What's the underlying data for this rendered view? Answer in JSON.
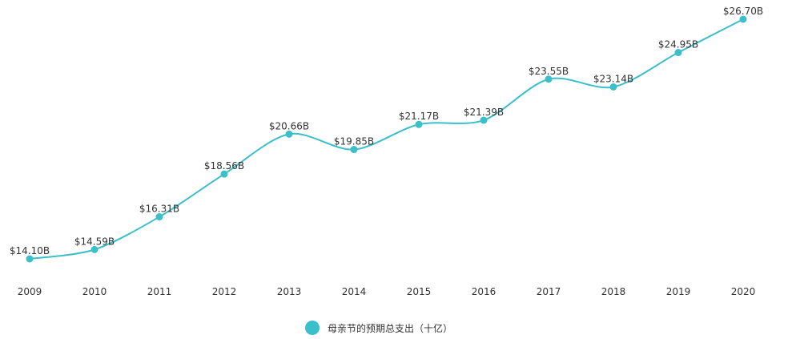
{
  "chart_data": {
    "type": "line",
    "categories": [
      "2009",
      "2010",
      "2011",
      "2012",
      "2013",
      "2014",
      "2015",
      "2016",
      "2017",
      "2018",
      "2019",
      "2020"
    ],
    "series": [
      {
        "name": "母亲节的预期总支出（十亿）",
        "values": [
          14.1,
          14.59,
          16.31,
          18.56,
          20.66,
          19.85,
          21.17,
          21.39,
          23.55,
          23.14,
          24.95,
          26.7
        ],
        "labels": [
          "$14.10B",
          "$14.59B",
          "$16.31B",
          "$18.56B",
          "$20.66B",
          "$19.85B",
          "$21.17B",
          "$21.39B",
          "$23.55B",
          "$23.14B",
          "$24.95B",
          "$26.70B"
        ],
        "color": "#3bbfca"
      }
    ],
    "title": "",
    "xlabel": "",
    "ylabel": "",
    "smooth": true,
    "grid": false,
    "legend_position": "bottom-center"
  }
}
